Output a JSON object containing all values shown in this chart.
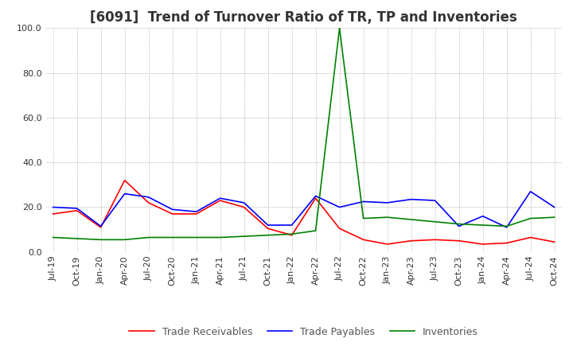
{
  "title": "[6091]  Trend of Turnover Ratio of TR, TP and Inventories",
  "ylim": [
    0,
    100
  ],
  "yticks": [
    0,
    20,
    40,
    60,
    80,
    100
  ],
  "background_color": "#ffffff",
  "grid_color": "#aaaaaa",
  "dates": [
    "Jul-19",
    "Oct-19",
    "Jan-20",
    "Apr-20",
    "Jul-20",
    "Oct-20",
    "Jan-21",
    "Apr-21",
    "Jul-21",
    "Oct-21",
    "Jan-22",
    "Apr-22",
    "Jul-22",
    "Oct-22",
    "Jan-23",
    "Apr-23",
    "Jul-23",
    "Oct-23",
    "Jan-24",
    "Apr-24",
    "Jul-24",
    "Oct-24"
  ],
  "trade_receivables": [
    17.0,
    18.5,
    11.0,
    32.0,
    22.0,
    17.0,
    17.0,
    23.0,
    20.0,
    10.5,
    7.5,
    24.0,
    10.5,
    5.5,
    3.5,
    5.0,
    5.5,
    5.0,
    3.5,
    4.0,
    6.5,
    4.5
  ],
  "trade_payables": [
    20.0,
    19.5,
    11.5,
    26.0,
    24.5,
    19.0,
    18.0,
    24.0,
    22.0,
    12.0,
    12.0,
    25.0,
    20.0,
    22.5,
    22.0,
    23.5,
    23.0,
    11.5,
    16.0,
    11.0,
    27.0,
    20.0
  ],
  "inventories": [
    6.5,
    6.0,
    5.5,
    5.5,
    6.5,
    6.5,
    6.5,
    6.5,
    7.0,
    7.5,
    8.0,
    9.5,
    100.0,
    15.0,
    15.5,
    14.5,
    13.5,
    12.5,
    12.0,
    11.5,
    15.0,
    15.5
  ],
  "tr_color": "#ff0000",
  "tp_color": "#0000ff",
  "inv_color": "#008000",
  "legend_labels": [
    "Trade Receivables",
    "Trade Payables",
    "Inventories"
  ],
  "title_fontsize": 12,
  "tick_fontsize": 8,
  "legend_fontsize": 9
}
